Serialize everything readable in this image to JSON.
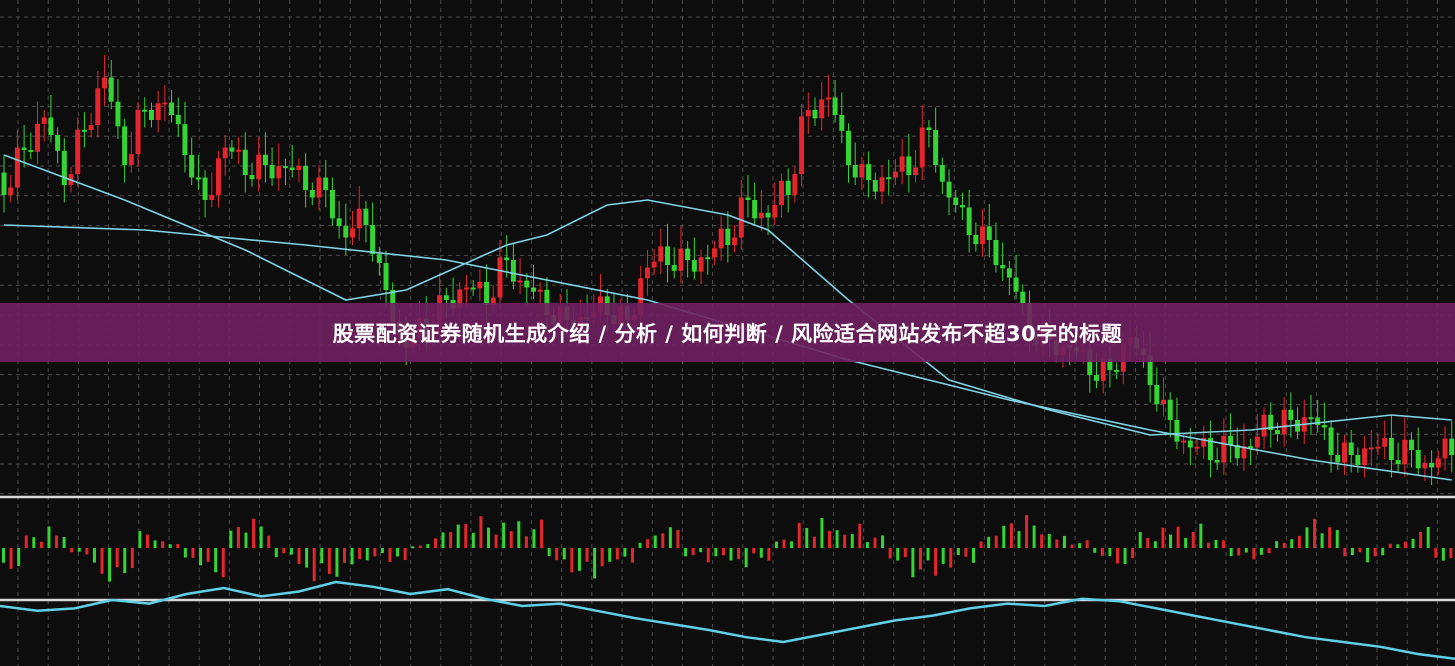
{
  "banner": {
    "title": "股票配资证券随机生成介绍 / 分析 / 如何判断 / 风险适合网站发布不超30字的标题"
  },
  "colors": {
    "up": "#e3262d",
    "down": "#35d435",
    "ma": "#7fd3e6",
    "rsi": "#5fd0e8",
    "grid": "#4a4a4a",
    "separator": "#d8d8d8",
    "banner": "#702060"
  },
  "chart_data": [
    {
      "type": "candlestick",
      "title": "",
      "grid": true,
      "closes": [
        64,
        70,
        78,
        66,
        74,
        86,
        70,
        78,
        81,
        72,
        60,
        72,
        68,
        67,
        68,
        65,
        62,
        54,
        58,
        42,
        32,
        36,
        40,
        44,
        42,
        48,
        44,
        40,
        36,
        38,
        40,
        36,
        48,
        50,
        48,
        50,
        54,
        60,
        58,
        64,
        78,
        82,
        70,
        64,
        66,
        68,
        74,
        62,
        56,
        52,
        46,
        36,
        32,
        32,
        28,
        26,
        34,
        26,
        16,
        12,
        11,
        11,
        12,
        17,
        16,
        18,
        12,
        9,
        12,
        11,
        10,
        8,
        12
      ],
      "moving_averages": [
        {
          "points": [
            [
              0,
              69
            ],
            [
              6,
              60
            ],
            [
              12,
              50
            ],
            [
              17,
              40
            ],
            [
              20,
              42
            ],
            [
              25,
              51
            ],
            [
              27,
              53
            ],
            [
              30,
              59
            ],
            [
              32,
              60
            ],
            [
              36,
              57
            ],
            [
              38,
              54
            ],
            [
              42,
              40
            ],
            [
              47,
              24
            ],
            [
              52,
              18
            ],
            [
              57,
              13
            ],
            [
              62,
              14
            ],
            [
              69,
              17
            ],
            [
              72,
              16
            ]
          ]
        },
        {
          "points": [
            [
              0,
              55
            ],
            [
              7,
              54
            ],
            [
              15,
              51
            ],
            [
              22,
              48
            ],
            [
              32,
              40
            ],
            [
              42,
              28
            ],
            [
              50,
              20
            ],
            [
              57,
              14
            ],
            [
              65,
              8
            ],
            [
              72,
              4
            ]
          ]
        }
      ]
    },
    {
      "type": "bar",
      "title": "",
      "values": [
        -0.5,
        0.3,
        0.6,
        -0.2,
        -0.8,
        -0.6,
        0.4,
        0.2,
        -0.5,
        -0.7,
        0.5,
        0.7,
        -0.3,
        -0.9,
        -0.7,
        -0.4,
        -0.3,
        -0.5,
        0.1,
        0.4,
        0.6,
        0.8,
        1,
        0.7,
        -0.3,
        -0.6,
        -0.8,
        -0.5,
        0.3,
        0.5,
        -0.2,
        -0.4,
        -0.6,
        -0.3,
        0.2,
        0.6,
        0.9,
        0.7,
        0.3,
        -0.3,
        -0.7,
        -0.9,
        -0.4,
        0.3,
        0.6,
        0.8,
        0.5,
        0.2,
        -0.2,
        -0.4,
        0.4,
        0.8,
        0.6,
        0.2,
        -0.2,
        -0.3,
        0.3,
        0.7,
        0.5,
        -0.2,
        -0.4,
        0.2,
        0.5,
        -0.3
      ]
    },
    {
      "type": "line",
      "title": "",
      "values": [
        70,
        66,
        68,
        75,
        72,
        80,
        85,
        78,
        82,
        90,
        86,
        80,
        84,
        76,
        70,
        72,
        66,
        60,
        55,
        50,
        44,
        40,
        46,
        52,
        58,
        62,
        68,
        72,
        70,
        76,
        74,
        68,
        62,
        56,
        50,
        44,
        40,
        36,
        30,
        26
      ]
    }
  ]
}
